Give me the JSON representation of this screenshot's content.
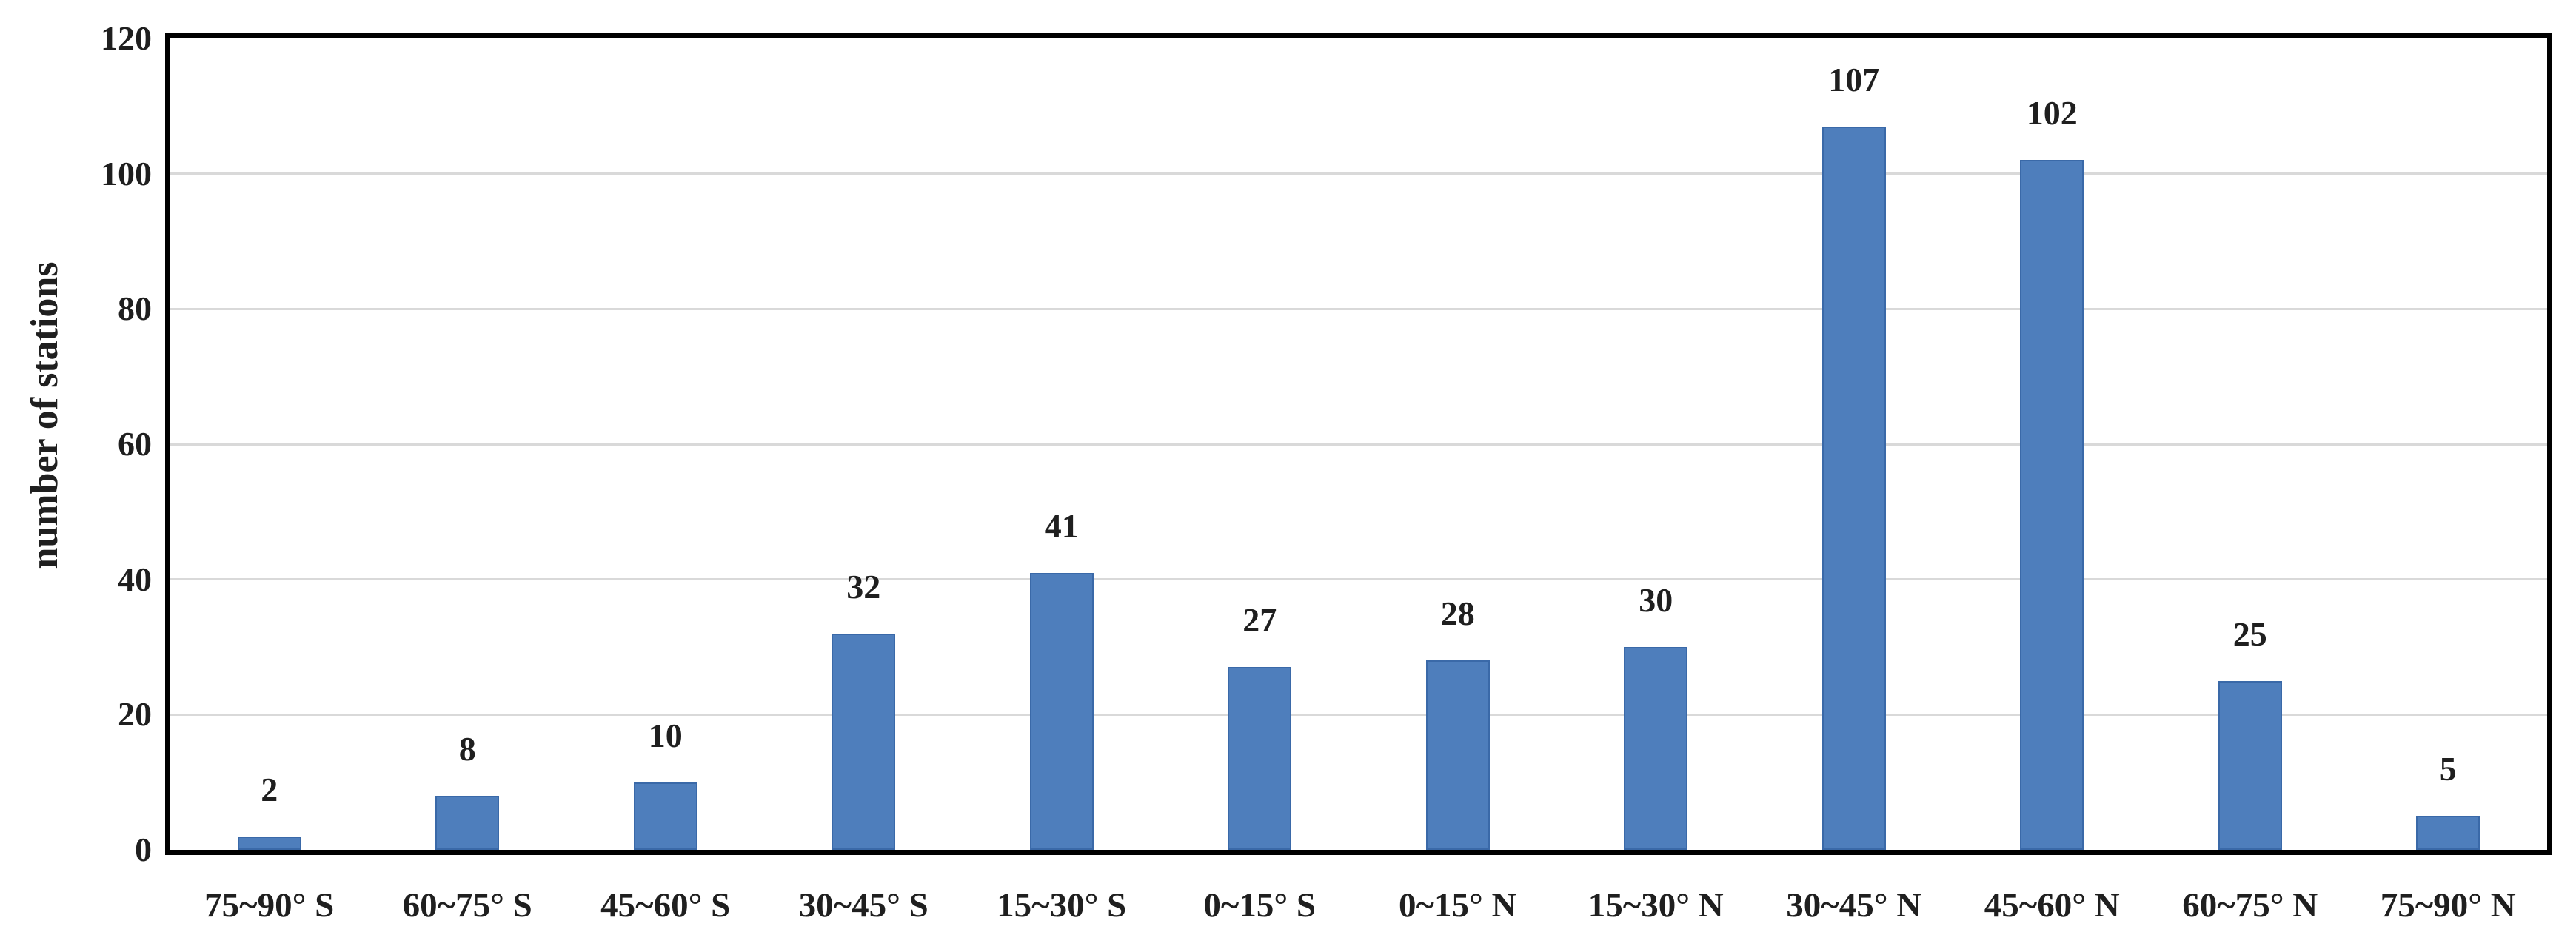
{
  "chart_data": {
    "type": "bar",
    "title": "",
    "ylabel": "number of stations",
    "categories": [
      "75~90° S",
      "60~75° S",
      "45~60° S",
      "30~45° S",
      "15~30° S",
      "0~15° S",
      "0~15° N",
      "15~30° N",
      "30~45° N",
      "45~60° N",
      "60~75° N",
      "75~90° N"
    ],
    "values": [
      2,
      8,
      10,
      32,
      41,
      27,
      28,
      30,
      107,
      102,
      25,
      5
    ],
    "ylim": [
      0,
      120
    ],
    "yticks": [
      0,
      20,
      40,
      60,
      80,
      100,
      120
    ],
    "gridlines_at": [
      20,
      40,
      60,
      80,
      100
    ],
    "grid": true,
    "legend_position": "none",
    "colors": {
      "bar_fill": "#4e7ebc",
      "bar_border": "#3a69a8",
      "gridline": "#d9d9d9",
      "frame": "#000000",
      "text": "#1f1f1f"
    }
  }
}
